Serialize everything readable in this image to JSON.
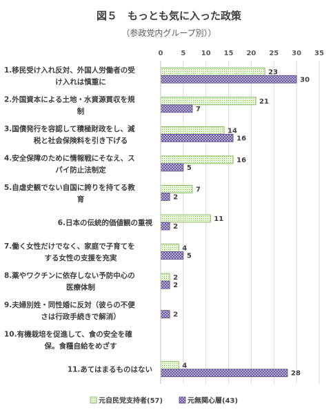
{
  "chart_data": {
    "type": "bar",
    "orientation": "horizontal",
    "title": "図５　もっとも気に入った政策",
    "subtitle": "（参政党内グループ別））",
    "xlim": [
      0,
      35
    ],
    "xticks": [
      0,
      5,
      10,
      15,
      20,
      25,
      30,
      35
    ],
    "grid": true,
    "legend_position": "bottom",
    "categories": [
      [
        "1.移民受け入れ反対、外国人労働者の受",
        "け入れは慎重に"
      ],
      [
        "2.外国資本による土地・水資源買収を規",
        "制"
      ],
      [
        "3.国債発行を容認して積極財政をし、減",
        "税と社会保険料を引き下げる"
      ],
      [
        "4.安全保障のために情報戦にそなえ、ス",
        "パイ防止法制定"
      ],
      [
        "5.自虐史観でない自国に誇りを持てる教",
        "育"
      ],
      [
        "6.日本の伝統的価値観の重視"
      ],
      [
        "7.働く女性だけでなく、家庭で子育てを",
        "する女性の支援を充実"
      ],
      [
        "8.薬やワクチンに依存しない予防中心の",
        "医療体制"
      ],
      [
        "9.夫婦別姓・同性婚に反対（彼らの不便",
        "さは行政手続きで解消）"
      ],
      [
        "10.有機栽培を促進して、食の安全を確",
        "保。食糧自給をめざす"
      ],
      [
        "11.あてはまるものはない"
      ]
    ],
    "series": [
      {
        "name": "元自民党支持者(57)",
        "color": "#d9f2c4",
        "stroke": "#70ad47",
        "pattern": "dots",
        "values": [
          23,
          21,
          14,
          16,
          7,
          11,
          4,
          2,
          null,
          null,
          4
        ]
      },
      {
        "name": "元無関心層(43)",
        "color": "#9b8ec4",
        "stroke": "#5b4a8a",
        "pattern": "crosshatch",
        "values": [
          30,
          7,
          16,
          5,
          2,
          2,
          5,
          2,
          2,
          null,
          28
        ]
      }
    ]
  }
}
